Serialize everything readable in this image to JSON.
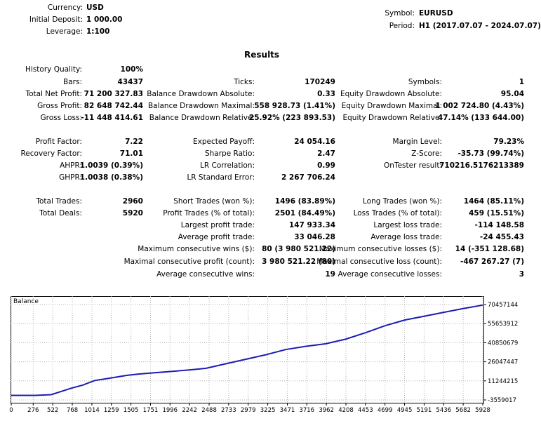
{
  "header": {
    "currency_label": "Currency:",
    "currency": "USD",
    "deposit_label": "Initial Deposit:",
    "deposit": "1 000.00",
    "leverage_label": "Leverage:",
    "leverage": "1:100",
    "symbol_label": "Symbol:",
    "symbol": "EURUSD",
    "period_label": "Period:",
    "period": "H1 (2017.07.07 - 2024.07.07)"
  },
  "results_title": "Results",
  "col1": [
    {
      "label": "History Quality:",
      "value": "100%"
    },
    {
      "label": "Bars:",
      "value": "43437"
    },
    {
      "label": "Total Net Profit:",
      "value": "71 200 327.83"
    },
    {
      "label": "Gross Profit:",
      "value": "82 648 742.44"
    },
    {
      "label": "Gross Loss:",
      "value": "-11 448 414.61"
    },
    {
      "label": "Profit Factor:",
      "value": "7.22"
    },
    {
      "label": "Recovery Factor:",
      "value": "71.01"
    },
    {
      "label": "AHPR:",
      "value": "1.0039 (0.39%)"
    },
    {
      "label": "GHPR:",
      "value": "1.0038 (0.38%)"
    },
    {
      "label": "Total Trades:",
      "value": "2960"
    },
    {
      "label": "Total Deals:",
      "value": "5920"
    }
  ],
  "col2": [
    {
      "label": "Ticks:",
      "value": "170249"
    },
    {
      "label": "Balance Drawdown Absolute:",
      "value": "0.33"
    },
    {
      "label": "Balance Drawdown Maximal:",
      "value": "558 928.73 (1.41%)"
    },
    {
      "label": "Balance Drawdown Relative:",
      "value": "25.92% (223 893.53)"
    },
    {
      "label": "Expected Payoff:",
      "value": "24 054.16"
    },
    {
      "label": "Sharpe Ratio:",
      "value": "2.47"
    },
    {
      "label": "LR Correlation:",
      "value": "0.99"
    },
    {
      "label": "LR Standard Error:",
      "value": "2 267 706.24"
    },
    {
      "label": "Short Trades (won %):",
      "value": "1496 (83.89%)"
    },
    {
      "label": "Profit Trades (% of total):",
      "value": "2501 (84.49%)"
    },
    {
      "label": "Largest profit trade:",
      "value": "147 933.34"
    },
    {
      "label": "Average profit trade:",
      "value": "33 046.28"
    },
    {
      "label": "Maximum consecutive wins ($):",
      "value": "80 (3 980 521.22)"
    },
    {
      "label": "Maximal consecutive profit (count):",
      "value": "3 980 521.22 (80)"
    },
    {
      "label": "Average consecutive wins:",
      "value": "19"
    }
  ],
  "col3": [
    {
      "label": "Symbols:",
      "value": "1"
    },
    {
      "label": "Equity Drawdown Absolute:",
      "value": "95.04"
    },
    {
      "label": "Equity Drawdown Maximal:",
      "value": "1 002 724.80 (4.43%)"
    },
    {
      "label": "Equity Drawdown Relative:",
      "value": "47.14% (133 644.00)"
    },
    {
      "label": "Margin Level:",
      "value": "79.23%"
    },
    {
      "label": "Z-Score:",
      "value": "-35.73 (99.74%)"
    },
    {
      "label": "OnTester result:",
      "value": "710216.5176213389"
    },
    {
      "label": "Long Trades (won %):",
      "value": "1464 (85.11%)"
    },
    {
      "label": "Loss Trades (% of total):",
      "value": "459 (15.51%)"
    },
    {
      "label": "Largest loss trade:",
      "value": "-114 148.58"
    },
    {
      "label": "Average loss trade:",
      "value": "-24 455.43"
    },
    {
      "label": "Maximum consecutive losses ($):",
      "value": "14 (-351 128.68)"
    },
    {
      "label": "Maximal consecutive loss (count):",
      "value": "-467 267.27 (7)"
    },
    {
      "label": "Average consecutive losses:",
      "value": "3"
    }
  ],
  "chart_data": {
    "type": "line",
    "title": "Balance",
    "line_color": "#1c1cb4",
    "grid": true,
    "xlim": [
      0,
      5928
    ],
    "ylim": [
      -3559017,
      70457144
    ],
    "x_ticks": [
      "0",
      "276",
      "522",
      "768",
      "1014",
      "1259",
      "1505",
      "1751",
      "1996",
      "2242",
      "2488",
      "2733",
      "2979",
      "3225",
      "3471",
      "3716",
      "3962",
      "4208",
      "4453",
      "4699",
      "4945",
      "5191",
      "5436",
      "5682",
      "5928"
    ],
    "y_ticks": [
      "70457144",
      "55653912",
      "40850679",
      "26047447",
      "11244215",
      "-3559017"
    ],
    "series": [
      {
        "x": [
          0,
          300,
          500,
          600,
          750,
          900,
          1050,
          1250,
          1450,
          1600,
          1800,
          2000,
          2250,
          2450,
          2700,
          2950,
          3200,
          3450,
          3700,
          3950,
          4200,
          4450,
          4700,
          4950,
          5200,
          5450,
          5700,
          5928
        ],
        "y": [
          1000,
          1000,
          500000,
          2500000,
          5500000,
          8000000,
          11500000,
          13500000,
          15500000,
          16500000,
          17500000,
          18500000,
          19800000,
          21000000,
          24500000,
          28000000,
          31500000,
          35500000,
          38000000,
          40000000,
          43500000,
          48500000,
          54000000,
          58500000,
          61500000,
          64500000,
          67500000,
          70000000
        ]
      }
    ]
  }
}
